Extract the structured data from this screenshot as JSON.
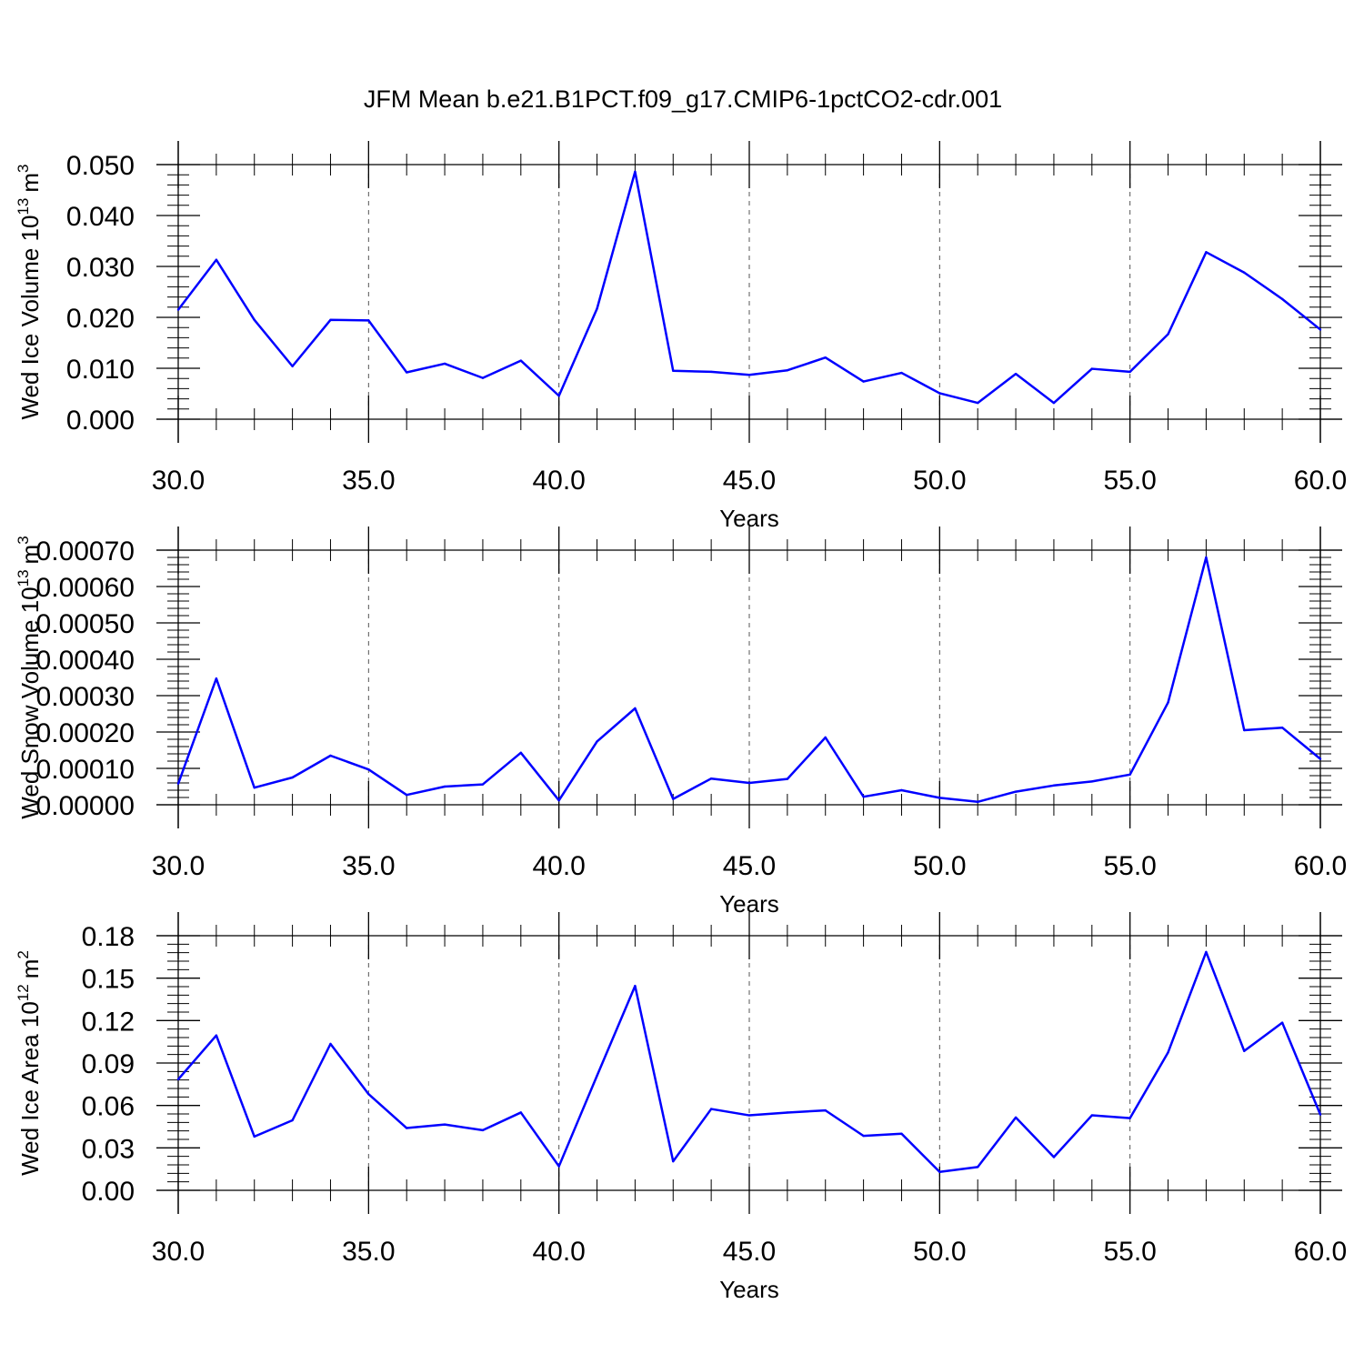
{
  "title": "JFM Mean b.e21.B1PCT.f09_g17.CMIP6-1pctCO2-cdr.001",
  "colors": {
    "line": "#0000ff",
    "axis": "#000000",
    "grid": "#555555"
  },
  "chart_data": [
    {
      "type": "line",
      "ylabel": "Wed Ice Volume 10",
      "ylabel_sup": "13",
      "ylabel_unit": "m",
      "ylabel_unit_sup": "3",
      "xlabel": "Years",
      "xlim": [
        30,
        60
      ],
      "ylim": [
        0,
        0.05
      ],
      "xticks": [
        30,
        35,
        40,
        45,
        50,
        55,
        60
      ],
      "xtick_labels": [
        "30.0",
        "35.0",
        "40.0",
        "45.0",
        "50.0",
        "55.0",
        "60.0"
      ],
      "yticks": [
        0,
        0.01,
        0.02,
        0.03,
        0.04,
        0.05
      ],
      "ytick_labels": [
        "0.000",
        "0.010",
        "0.020",
        "0.030",
        "0.040",
        "0.050"
      ],
      "grid": "vertical dashed at major x ticks",
      "x": [
        30,
        31,
        32,
        33,
        34,
        35,
        36,
        37,
        38,
        39,
        40,
        41,
        42,
        43,
        44,
        45,
        46,
        47,
        48,
        49,
        50,
        51,
        52,
        53,
        54,
        55,
        56,
        57,
        58,
        59,
        60
      ],
      "series": [
        {
          "values": [
            0.0215,
            0.0313,
            0.0195,
            0.0104,
            0.0195,
            0.0194,
            0.0092,
            0.0109,
            0.0081,
            0.0115,
            0.0046,
            0.0217,
            0.0486,
            0.0095,
            0.0093,
            0.0087,
            0.0096,
            0.0121,
            0.0074,
            0.0091,
            0.0051,
            0.0032,
            0.0089,
            0.0032,
            0.0099,
            0.0093,
            0.0167,
            0.0328,
            0.0288,
            0.0236,
            0.0176
          ]
        }
      ]
    },
    {
      "type": "line",
      "ylabel": "Wed Snow Volume 10",
      "ylabel_sup": "13",
      "ylabel_unit": "m",
      "ylabel_unit_sup": "3",
      "xlabel": "Years",
      "xlim": [
        30,
        60
      ],
      "ylim": [
        0,
        0.0007
      ],
      "xticks": [
        30,
        35,
        40,
        45,
        50,
        55,
        60
      ],
      "xtick_labels": [
        "30.0",
        "35.0",
        "40.0",
        "45.0",
        "50.0",
        "55.0",
        "60.0"
      ],
      "yticks": [
        0,
        0.0001,
        0.0002,
        0.0003,
        0.0004,
        0.0005,
        0.0006,
        0.0007
      ],
      "ytick_labels": [
        "0.00000",
        "0.00010",
        "0.00020",
        "0.00030",
        "0.00040",
        "0.00050",
        "0.00060",
        "0.00070"
      ],
      "grid": "vertical dashed at major x ticks",
      "x": [
        30,
        31,
        32,
        33,
        34,
        35,
        36,
        37,
        38,
        39,
        40,
        41,
        42,
        43,
        44,
        45,
        46,
        47,
        48,
        49,
        50,
        51,
        52,
        53,
        54,
        55,
        56,
        57,
        58,
        59,
        60
      ],
      "series": [
        {
          "values": [
            5.8e-05,
            0.000347,
            4.7e-05,
            7.5e-05,
            0.000135,
            9.7e-05,
            2.7e-05,
            5e-05,
            5.6e-05,
            0.000143,
            1.2e-05,
            0.000174,
            0.000265,
            1.6e-05,
            7.2e-05,
            6e-05,
            7.1e-05,
            0.000185,
            2.2e-05,
            4e-05,
            1.9e-05,
            8e-06,
            3.6e-05,
            5.3e-05,
            6.4e-05,
            8.3e-05,
            0.000281,
            0.00068,
            0.000205,
            0.000212,
            0.000126
          ]
        }
      ]
    },
    {
      "type": "line",
      "ylabel": "Wed Ice Area 10",
      "ylabel_sup": "12",
      "ylabel_unit": "m",
      "ylabel_unit_sup": "2",
      "xlabel": "Years",
      "xlim": [
        30,
        60
      ],
      "ylim": [
        0,
        0.18
      ],
      "xticks": [
        30,
        35,
        40,
        45,
        50,
        55,
        60
      ],
      "xtick_labels": [
        "30.0",
        "35.0",
        "40.0",
        "45.0",
        "50.0",
        "55.0",
        "60.0"
      ],
      "yticks": [
        0,
        0.03,
        0.06,
        0.09,
        0.12,
        0.15,
        0.18
      ],
      "ytick_labels": [
        "0.00",
        "0.03",
        "0.06",
        "0.09",
        "0.12",
        "0.15",
        "0.18"
      ],
      "grid": "vertical dashed at major x ticks",
      "x": [
        30,
        31,
        32,
        33,
        34,
        35,
        36,
        37,
        38,
        39,
        40,
        41,
        42,
        43,
        44,
        45,
        46,
        47,
        48,
        49,
        50,
        51,
        52,
        53,
        54,
        55,
        56,
        57,
        58,
        59,
        60
      ],
      "series": [
        {
          "values": [
            0.0785,
            0.1095,
            0.038,
            0.0495,
            0.1035,
            0.068,
            0.044,
            0.0465,
            0.0425,
            0.055,
            0.017,
            0.081,
            0.1445,
            0.0205,
            0.0575,
            0.053,
            0.055,
            0.0565,
            0.0385,
            0.04,
            0.013,
            0.0165,
            0.0515,
            0.0235,
            0.053,
            0.051,
            0.0975,
            0.1685,
            0.0985,
            0.1185,
            0.0535
          ]
        }
      ]
    }
  ]
}
